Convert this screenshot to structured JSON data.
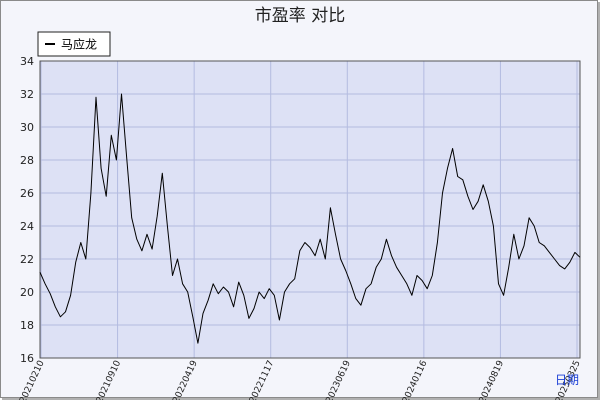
{
  "chart_data": {
    "type": "line",
    "title": "市盈率  对比",
    "legend": {
      "placement": "top-left",
      "entries": [
        "马应龙"
      ]
    },
    "grid": true,
    "xlabel": "日期",
    "ylabel": "",
    "ylim": [
      16,
      34
    ],
    "yticks": [
      16,
      18,
      20,
      22,
      24,
      26,
      28,
      30,
      32,
      34
    ],
    "xticks": [
      "20210210",
      "20210910",
      "20220419",
      "20221117",
      "20230619",
      "20240116",
      "20240819",
      "20250325"
    ],
    "series": [
      {
        "name": "马应龙",
        "color": "#000000",
        "points": [
          [
            0,
            21.2
          ],
          [
            1,
            20.5
          ],
          [
            2,
            19.9
          ],
          [
            3,
            19.1
          ],
          [
            4,
            18.5
          ],
          [
            5,
            18.8
          ],
          [
            6,
            19.8
          ],
          [
            7,
            21.8
          ],
          [
            8,
            23.0
          ],
          [
            9,
            22.0
          ],
          [
            10,
            26.0
          ],
          [
            11,
            31.8
          ],
          [
            12,
            27.5
          ],
          [
            13,
            25.8
          ],
          [
            14,
            29.5
          ],
          [
            15,
            28.0
          ],
          [
            16,
            32.0
          ],
          [
            17,
            28.2
          ],
          [
            18,
            24.5
          ],
          [
            19,
            23.2
          ],
          [
            20,
            22.5
          ],
          [
            21,
            23.5
          ],
          [
            22,
            22.6
          ],
          [
            23,
            24.6
          ],
          [
            24,
            27.2
          ],
          [
            25,
            24.0
          ],
          [
            26,
            21.0
          ],
          [
            27,
            22.0
          ],
          [
            28,
            20.5
          ],
          [
            29,
            20.0
          ],
          [
            30,
            18.5
          ],
          [
            31,
            16.9
          ],
          [
            32,
            18.7
          ],
          [
            33,
            19.5
          ],
          [
            34,
            20.5
          ],
          [
            35,
            19.9
          ],
          [
            36,
            20.3
          ],
          [
            37,
            20.0
          ],
          [
            38,
            19.1
          ],
          [
            39,
            20.6
          ],
          [
            40,
            19.8
          ],
          [
            41,
            18.4
          ],
          [
            42,
            19.0
          ],
          [
            43,
            20.0
          ],
          [
            44,
            19.6
          ],
          [
            45,
            20.2
          ],
          [
            46,
            19.8
          ],
          [
            47,
            18.3
          ],
          [
            48,
            20.0
          ],
          [
            49,
            20.5
          ],
          [
            50,
            20.8
          ],
          [
            51,
            22.5
          ],
          [
            52,
            23.0
          ],
          [
            53,
            22.7
          ],
          [
            54,
            22.2
          ],
          [
            55,
            23.2
          ],
          [
            56,
            22.0
          ],
          [
            57,
            25.1
          ],
          [
            58,
            23.5
          ],
          [
            59,
            22.0
          ],
          [
            60,
            21.3
          ],
          [
            61,
            20.5
          ],
          [
            62,
            19.6
          ],
          [
            63,
            19.2
          ],
          [
            64,
            20.2
          ],
          [
            65,
            20.5
          ],
          [
            66,
            21.5
          ],
          [
            67,
            22.0
          ],
          [
            68,
            23.2
          ],
          [
            69,
            22.2
          ],
          [
            70,
            21.5
          ],
          [
            71,
            21.0
          ],
          [
            72,
            20.5
          ],
          [
            73,
            19.8
          ],
          [
            74,
            21.0
          ],
          [
            75,
            20.7
          ],
          [
            76,
            20.2
          ],
          [
            77,
            21.0
          ],
          [
            78,
            23.0
          ],
          [
            79,
            26.0
          ],
          [
            80,
            27.5
          ],
          [
            81,
            28.7
          ],
          [
            82,
            27.0
          ],
          [
            83,
            26.8
          ],
          [
            84,
            25.8
          ],
          [
            85,
            25.0
          ],
          [
            86,
            25.5
          ],
          [
            87,
            26.5
          ],
          [
            88,
            25.5
          ],
          [
            89,
            24.0
          ],
          [
            90,
            20.5
          ],
          [
            91,
            19.8
          ],
          [
            92,
            21.5
          ],
          [
            93,
            23.5
          ],
          [
            94,
            22.0
          ],
          [
            95,
            22.8
          ],
          [
            96,
            24.5
          ],
          [
            97,
            24.0
          ],
          [
            98,
            23.0
          ],
          [
            99,
            22.8
          ],
          [
            100,
            22.4
          ],
          [
            101,
            22.0
          ],
          [
            102,
            21.6
          ],
          [
            103,
            21.4
          ],
          [
            104,
            21.8
          ],
          [
            105,
            22.4
          ],
          [
            106,
            22.1
          ]
        ]
      }
    ]
  }
}
